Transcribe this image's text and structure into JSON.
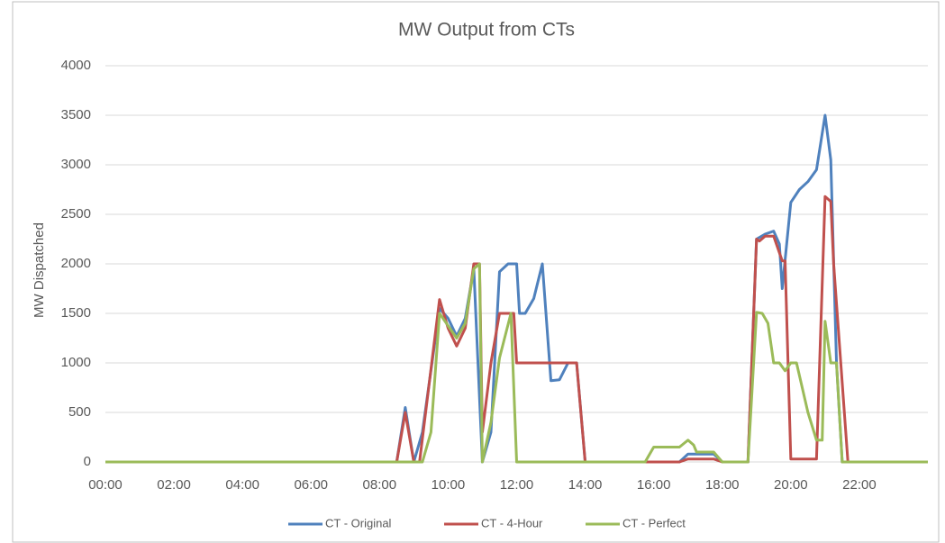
{
  "chart_data": {
    "type": "line",
    "title": "MW Output from CTs",
    "y_label": "MW Dispatched",
    "xlim": [
      "00:00",
      "24:00"
    ],
    "xticks": [
      "00:00",
      "02:00",
      "04:00",
      "06:00",
      "08:00",
      "10:00",
      "12:00",
      "14:00",
      "16:00",
      "18:00",
      "20:00",
      "22:00"
    ],
    "ylim": [
      0,
      4000
    ],
    "yticks": [
      0,
      500,
      1000,
      1500,
      2000,
      2500,
      3000,
      3500,
      4000
    ],
    "grid": true,
    "legend": "bottom",
    "series": [
      {
        "name": "CT - Original",
        "color": "#4f81bd",
        "x": [
          "00:00",
          "08:30",
          "08:45",
          "09:00",
          "09:15",
          "09:45",
          "10:00",
          "10:15",
          "10:30",
          "10:45",
          "11:00",
          "11:15",
          "11:30",
          "11:45",
          "12:00",
          "12:05",
          "12:15",
          "12:30",
          "12:45",
          "13:00",
          "13:15",
          "13:30",
          "13:45",
          "14:00",
          "16:45",
          "17:00",
          "17:45",
          "18:00",
          "18:45",
          "19:00",
          "19:15",
          "19:30",
          "19:40",
          "19:45",
          "20:00",
          "20:15",
          "20:30",
          "20:45",
          "21:00",
          "21:10",
          "21:20",
          "21:30",
          "24:00"
        ],
        "values": [
          0,
          0,
          550,
          0,
          300,
          1550,
          1450,
          1270,
          1450,
          1950,
          0,
          300,
          1920,
          2000,
          2000,
          1500,
          1500,
          1650,
          2000,
          820,
          830,
          1000,
          1000,
          0,
          0,
          80,
          80,
          0,
          0,
          2250,
          2300,
          2330,
          2200,
          1750,
          2620,
          2750,
          2830,
          2950,
          3500,
          3050,
          1000,
          0,
          0
        ]
      },
      {
        "name": "CT - 4-Hour",
        "color": "#c0504d",
        "x": [
          "00:00",
          "08:30",
          "08:45",
          "09:00",
          "09:10",
          "09:45",
          "10:00",
          "10:15",
          "10:30",
          "10:45",
          "10:55",
          "11:00",
          "11:15",
          "11:30",
          "11:55",
          "12:00",
          "13:45",
          "14:00",
          "16:45",
          "17:00",
          "17:45",
          "18:00",
          "18:45",
          "19:00",
          "19:05",
          "19:15",
          "19:30",
          "19:45",
          "19:50",
          "20:00",
          "20:45",
          "21:00",
          "21:10",
          "21:15",
          "21:40",
          "24:00"
        ],
        "values": [
          0,
          0,
          500,
          0,
          0,
          1640,
          1350,
          1170,
          1350,
          2000,
          2000,
          300,
          1000,
          1500,
          1500,
          1000,
          1000,
          0,
          0,
          30,
          30,
          0,
          0,
          2250,
          2230,
          2280,
          2280,
          2030,
          2030,
          30,
          30,
          2680,
          2630,
          2000,
          0,
          0
        ]
      },
      {
        "name": "CT - Perfect",
        "color": "#9bbb59",
        "x": [
          "00:00",
          "09:15",
          "09:30",
          "09:45",
          "10:15",
          "10:30",
          "10:45",
          "10:55",
          "11:00",
          "11:15",
          "11:30",
          "11:50",
          "12:00",
          "15:45",
          "16:00",
          "16:45",
          "17:00",
          "17:10",
          "17:15",
          "17:45",
          "18:00",
          "18:45",
          "19:00",
          "19:10",
          "19:20",
          "19:30",
          "19:40",
          "19:50",
          "20:00",
          "20:10",
          "20:30",
          "20:45",
          "20:55",
          "21:00",
          "21:10",
          "21:20",
          "21:30",
          "24:00"
        ],
        "values": [
          0,
          0,
          300,
          1500,
          1250,
          1400,
          1950,
          2000,
          0,
          400,
          1050,
          1500,
          0,
          0,
          150,
          150,
          220,
          170,
          100,
          100,
          0,
          0,
          1510,
          1500,
          1400,
          1000,
          1000,
          920,
          1000,
          1000,
          500,
          220,
          220,
          1420,
          1000,
          1000,
          0,
          0
        ]
      }
    ]
  }
}
